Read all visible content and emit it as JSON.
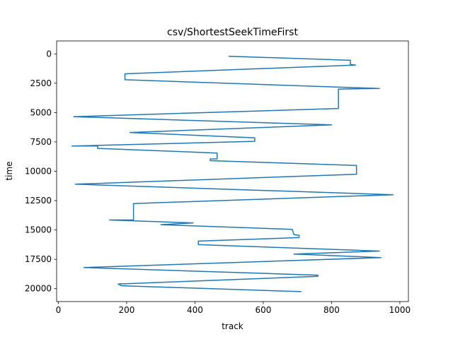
{
  "chart_data": {
    "type": "line",
    "title": "csv/ShortestSeekTimeFirst",
    "xlabel": "track",
    "ylabel": "time",
    "xlim": [
      -5,
      1025
    ],
    "ylim": [
      21100,
      -1100
    ],
    "y_inverted": true,
    "grid": false,
    "xticks": [
      0,
      200,
      400,
      600,
      800,
      1000
    ],
    "xtick_labels": [
      "0",
      "200",
      "400",
      "600",
      "800",
      "1000"
    ],
    "yticks": [
      0,
      2500,
      5000,
      7500,
      10000,
      12500,
      15000,
      17500,
      20000
    ],
    "ytick_labels": [
      "0",
      "2500",
      "5000",
      "7500",
      "10000",
      "12500",
      "15000",
      "17500",
      "20000"
    ],
    "series": [
      {
        "color": "#1f77b4",
        "points": [
          [
            500,
            200
          ],
          [
            855,
            550
          ],
          [
            855,
            900
          ],
          [
            870,
            950
          ],
          [
            195,
            1700
          ],
          [
            195,
            2200
          ],
          [
            940,
            2950
          ],
          [
            820,
            3000
          ],
          [
            820,
            4650
          ],
          [
            45,
            5350
          ],
          [
            800,
            6050
          ],
          [
            210,
            6700
          ],
          [
            575,
            7150
          ],
          [
            575,
            7450
          ],
          [
            40,
            7850
          ],
          [
            115,
            7850
          ],
          [
            115,
            8050
          ],
          [
            465,
            8450
          ],
          [
            465,
            8950
          ],
          [
            445,
            8950
          ],
          [
            445,
            9100
          ],
          [
            873,
            9500
          ],
          [
            873,
            10250
          ],
          [
            50,
            11100
          ],
          [
            980,
            12000
          ],
          [
            220,
            12750
          ],
          [
            220,
            14150
          ],
          [
            150,
            14150
          ],
          [
            395,
            14400
          ],
          [
            300,
            14550
          ],
          [
            685,
            14950
          ],
          [
            690,
            15400
          ],
          [
            705,
            15450
          ],
          [
            705,
            15650
          ],
          [
            410,
            15950
          ],
          [
            410,
            16250
          ],
          [
            940,
            16800
          ],
          [
            690,
            17050
          ],
          [
            945,
            17350
          ],
          [
            75,
            18200
          ],
          [
            760,
            18850
          ],
          [
            760,
            18950
          ],
          [
            175,
            19600
          ],
          [
            185,
            19750
          ],
          [
            710,
            20250
          ]
        ]
      }
    ]
  }
}
